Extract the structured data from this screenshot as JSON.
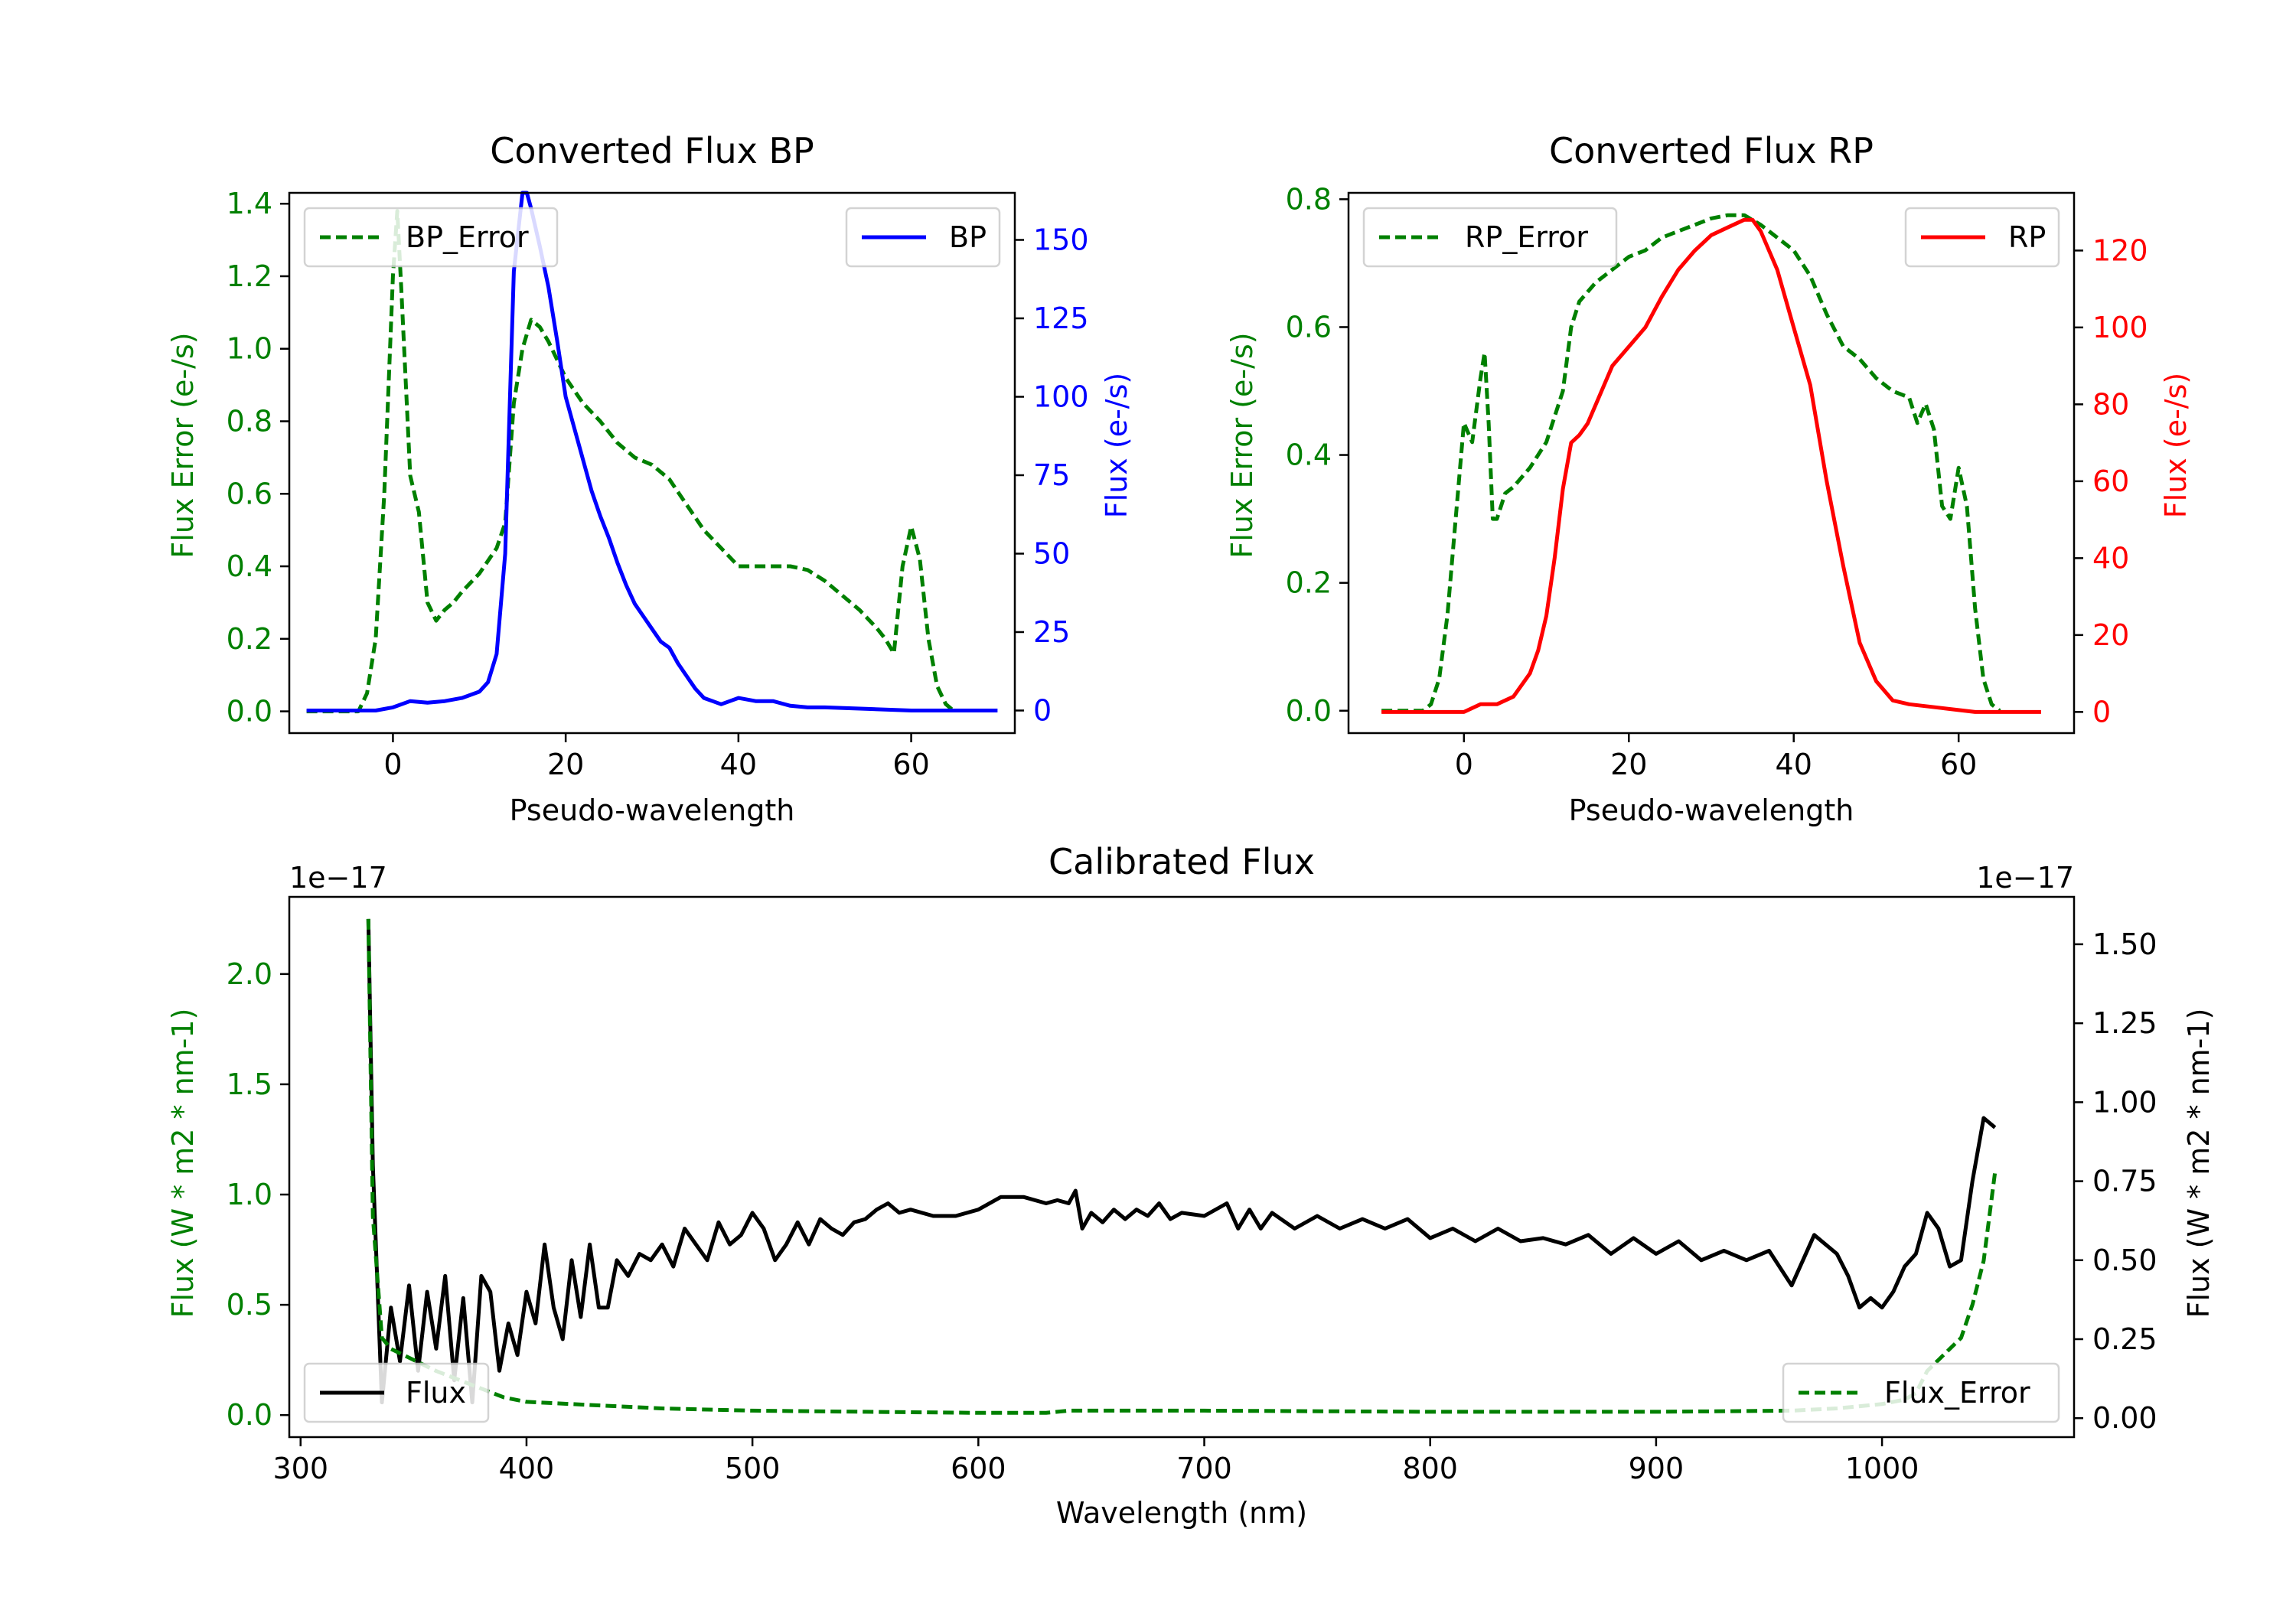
{
  "chart_data": [
    {
      "type": "line",
      "title": "Converted Flux BP",
      "xlabel": "Pseudo-wavelength",
      "xlim": [
        -12,
        72
      ],
      "xticks": [
        0,
        20,
        40,
        60
      ],
      "left_axis": {
        "label": "Flux Error (e-/s)",
        "color": "#008000",
        "ylim": [
          -0.06,
          1.43
        ],
        "ticks": [
          "0.0",
          "0.2",
          "0.4",
          "0.6",
          "0.8",
          "1.0",
          "1.2",
          "1.4"
        ]
      },
      "right_axis": {
        "label": "Flux (e-/s)",
        "color": "#0000ff",
        "ylim": [
          -7.2,
          165
        ],
        "ticks": [
          "0",
          "25",
          "50",
          "75",
          "100",
          "125",
          "150"
        ]
      },
      "series": [
        {
          "name": "BP_Error",
          "axis": "left",
          "color": "#008000",
          "style": "dashed",
          "legend_loc": "upper left",
          "x": [
            -10,
            -4,
            -3,
            -2,
            -1,
            0,
            0.5,
            1,
            2,
            3,
            4,
            5,
            6,
            7,
            8,
            10,
            12,
            13,
            14,
            15,
            16,
            17,
            18,
            19,
            20,
            22,
            24,
            26,
            28,
            30,
            32,
            34,
            36,
            38,
            40,
            42,
            44,
            46,
            48,
            50,
            52,
            54,
            56,
            57,
            58,
            59,
            60,
            61,
            62,
            63,
            64,
            65
          ],
          "y": [
            0,
            0,
            0.05,
            0.2,
            0.6,
            1.2,
            1.38,
            1.15,
            0.65,
            0.55,
            0.3,
            0.25,
            0.28,
            0.3,
            0.33,
            0.38,
            0.45,
            0.52,
            0.85,
            1.0,
            1.08,
            1.06,
            1.02,
            0.97,
            0.92,
            0.85,
            0.8,
            0.74,
            0.7,
            0.68,
            0.64,
            0.57,
            0.5,
            0.45,
            0.4,
            0.4,
            0.4,
            0.4,
            0.39,
            0.36,
            0.32,
            0.28,
            0.23,
            0.2,
            0.16,
            0.4,
            0.51,
            0.42,
            0.2,
            0.07,
            0.02,
            0
          ]
        },
        {
          "name": "BP",
          "axis": "right",
          "color": "#0000ff",
          "style": "solid",
          "legend_loc": "upper right",
          "x": [
            -10,
            -2,
            0,
            2,
            4,
            6,
            8,
            10,
            11,
            12,
            13,
            14,
            15,
            15.5,
            16,
            17,
            18,
            19,
            20,
            21,
            22,
            23,
            24,
            25,
            26,
            27,
            28,
            29,
            30,
            31,
            32,
            33,
            34,
            35,
            36,
            37,
            38,
            40,
            42,
            44,
            46,
            48,
            50,
            55,
            60,
            65,
            70
          ],
          "y": [
            0,
            0,
            1,
            3,
            2.5,
            3,
            4,
            6,
            9,
            18,
            50,
            140,
            165,
            165,
            160,
            148,
            135,
            118,
            100,
            90,
            80,
            70,
            62,
            55,
            47,
            40,
            34,
            30,
            26,
            22,
            20,
            15,
            11,
            7,
            4,
            3,
            2,
            4,
            3,
            3,
            1.5,
            1,
            1,
            0.5,
            0,
            0,
            0
          ]
        }
      ]
    },
    {
      "type": "line",
      "title": "Converted Flux RP",
      "xlabel": "Pseudo-wavelength",
      "xlim": [
        -14,
        74
      ],
      "xticks": [
        0,
        20,
        40,
        60
      ],
      "left_axis": {
        "label": "Flux Error (e-/s)",
        "color": "#008000",
        "ylim": [
          -0.035,
          0.81
        ],
        "ticks": [
          "0.0",
          "0.2",
          "0.4",
          "0.6",
          "0.8"
        ]
      },
      "right_axis": {
        "label": "Flux (e-/s)",
        "color": "#ff0000",
        "ylim": [
          -5.5,
          135
        ],
        "ticks": [
          "0",
          "20",
          "40",
          "60",
          "80",
          "100",
          "120"
        ]
      },
      "series": [
        {
          "name": "RP_Error",
          "axis": "left",
          "color": "#008000",
          "style": "dashed",
          "legend_loc": "upper left",
          "x": [
            -10,
            -5,
            -4,
            -3,
            -2,
            -1,
            0,
            1,
            2,
            2.5,
            3,
            3.5,
            4,
            5,
            6,
            8,
            10,
            12,
            13,
            14,
            16,
            18,
            20,
            22,
            24,
            26,
            28,
            30,
            32,
            34,
            36,
            38,
            40,
            42,
            44,
            46,
            48,
            50,
            52,
            54,
            55,
            56,
            57,
            58,
            59,
            60,
            61,
            62,
            63,
            64,
            65
          ],
          "y": [
            0,
            0,
            0.01,
            0.05,
            0.15,
            0.3,
            0.45,
            0.42,
            0.52,
            0.56,
            0.45,
            0.3,
            0.3,
            0.34,
            0.35,
            0.38,
            0.42,
            0.5,
            0.6,
            0.64,
            0.67,
            0.69,
            0.71,
            0.72,
            0.74,
            0.75,
            0.76,
            0.77,
            0.775,
            0.775,
            0.76,
            0.74,
            0.72,
            0.68,
            0.62,
            0.57,
            0.55,
            0.52,
            0.5,
            0.49,
            0.45,
            0.48,
            0.44,
            0.32,
            0.3,
            0.38,
            0.32,
            0.16,
            0.05,
            0.01,
            0
          ]
        },
        {
          "name": "RP",
          "axis": "right",
          "color": "#ff0000",
          "style": "solid",
          "legend_loc": "upper right",
          "x": [
            -10,
            0,
            2,
            4,
            6,
            8,
            9,
            10,
            11,
            12,
            13,
            14,
            15,
            16,
            18,
            20,
            22,
            24,
            26,
            28,
            30,
            32,
            34,
            35,
            36,
            38,
            40,
            42,
            44,
            46,
            48,
            50,
            52,
            54,
            56,
            58,
            60,
            62,
            65,
            70
          ],
          "y": [
            0,
            0,
            2,
            2,
            4,
            10,
            16,
            25,
            40,
            58,
            70,
            72,
            75,
            80,
            90,
            95,
            100,
            108,
            115,
            120,
            124,
            126,
            128,
            128,
            125,
            115,
            100,
            85,
            60,
            38,
            18,
            8,
            3,
            2,
            1.5,
            1,
            0.5,
            0,
            0,
            0
          ]
        }
      ]
    },
    {
      "type": "line",
      "title": "Calibrated Flux",
      "xlabel": "Wavelength (nm)",
      "xlim": [
        295,
        1085
      ],
      "xticks": [
        300,
        400,
        500,
        600,
        700,
        800,
        900,
        1000
      ],
      "left_axis": {
        "label": "Flux (W * m2 * nm-1)",
        "color": "#008000",
        "offset": "1e−17",
        "ylim": [
          -0.1,
          2.35
        ],
        "ticks": [
          "0.0",
          "0.5",
          "1.0",
          "1.5",
          "2.0"
        ]
      },
      "right_axis": {
        "label": "Flux (W * m2 * nm-1)",
        "color": "#000000",
        "offset": "1e−17",
        "ylim": [
          -0.06,
          1.65
        ],
        "ticks": [
          "0.00",
          "0.25",
          "0.50",
          "0.75",
          "1.00",
          "1.25",
          "1.50"
        ]
      },
      "series": [
        {
          "name": "Flux",
          "axis": "right",
          "color": "#000000",
          "style": "solid",
          "legend_loc": "lower left",
          "x": [
            330,
            332,
            336,
            340,
            344,
            348,
            352,
            356,
            360,
            364,
            368,
            372,
            376,
            380,
            384,
            388,
            392,
            396,
            400,
            404,
            408,
            412,
            416,
            420,
            424,
            428,
            432,
            436,
            440,
            445,
            450,
            455,
            460,
            465,
            470,
            475,
            480,
            485,
            490,
            495,
            500,
            505,
            510,
            515,
            520,
            525,
            530,
            535,
            540,
            545,
            550,
            555,
            560,
            565,
            570,
            580,
            590,
            600,
            610,
            620,
            630,
            635,
            640,
            643,
            646,
            650,
            655,
            660,
            665,
            670,
            675,
            680,
            685,
            690,
            700,
            710,
            715,
            720,
            725,
            730,
            740,
            750,
            760,
            770,
            780,
            790,
            800,
            810,
            820,
            830,
            840,
            850,
            860,
            870,
            880,
            890,
            900,
            910,
            920,
            930,
            940,
            950,
            960,
            965,
            970,
            975,
            980,
            985,
            990,
            995,
            1000,
            1005,
            1010,
            1015,
            1020,
            1025,
            1030,
            1035,
            1040,
            1045,
            1050
          ],
          "y": [
            1.58,
            0.8,
            0.05,
            0.35,
            0.18,
            0.42,
            0.15,
            0.4,
            0.22,
            0.45,
            0.12,
            0.38,
            0.05,
            0.45,
            0.4,
            0.15,
            0.3,
            0.2,
            0.4,
            0.3,
            0.55,
            0.35,
            0.25,
            0.5,
            0.32,
            0.55,
            0.35,
            0.35,
            0.5,
            0.45,
            0.52,
            0.5,
            0.55,
            0.48,
            0.6,
            0.55,
            0.5,
            0.62,
            0.55,
            0.58,
            0.65,
            0.6,
            0.5,
            0.55,
            0.62,
            0.55,
            0.63,
            0.6,
            0.58,
            0.62,
            0.63,
            0.66,
            0.68,
            0.65,
            0.66,
            0.64,
            0.64,
            0.66,
            0.7,
            0.7,
            0.68,
            0.69,
            0.68,
            0.72,
            0.6,
            0.65,
            0.62,
            0.66,
            0.63,
            0.66,
            0.64,
            0.68,
            0.63,
            0.65,
            0.64,
            0.68,
            0.6,
            0.66,
            0.6,
            0.65,
            0.6,
            0.64,
            0.6,
            0.63,
            0.6,
            0.63,
            0.57,
            0.6,
            0.56,
            0.6,
            0.56,
            0.57,
            0.55,
            0.58,
            0.52,
            0.57,
            0.52,
            0.56,
            0.5,
            0.53,
            0.5,
            0.53,
            0.42,
            0.5,
            0.58,
            0.55,
            0.52,
            0.45,
            0.35,
            0.38,
            0.35,
            0.4,
            0.48,
            0.52,
            0.65,
            0.6,
            0.48,
            0.5,
            0.75,
            0.95,
            0.92
          ]
        },
        {
          "name": "Flux_Error",
          "axis": "left",
          "color": "#008000",
          "style": "dashed",
          "legend_loc": "lower right",
          "x": [
            330,
            332,
            336,
            340,
            350,
            360,
            370,
            380,
            390,
            400,
            420,
            440,
            460,
            480,
            500,
            550,
            600,
            630,
            640,
            650,
            700,
            800,
            900,
            960,
            980,
            1000,
            1010,
            1015,
            1020,
            1025,
            1030,
            1035,
            1040,
            1045,
            1050
          ],
          "y": [
            2.25,
            0.9,
            0.35,
            0.3,
            0.25,
            0.2,
            0.16,
            0.12,
            0.08,
            0.06,
            0.05,
            0.04,
            0.03,
            0.025,
            0.02,
            0.015,
            0.01,
            0.01,
            0.02,
            0.02,
            0.02,
            0.015,
            0.015,
            0.02,
            0.03,
            0.05,
            0.07,
            0.1,
            0.2,
            0.25,
            0.3,
            0.35,
            0.5,
            0.7,
            1.1
          ]
        }
      ]
    }
  ]
}
